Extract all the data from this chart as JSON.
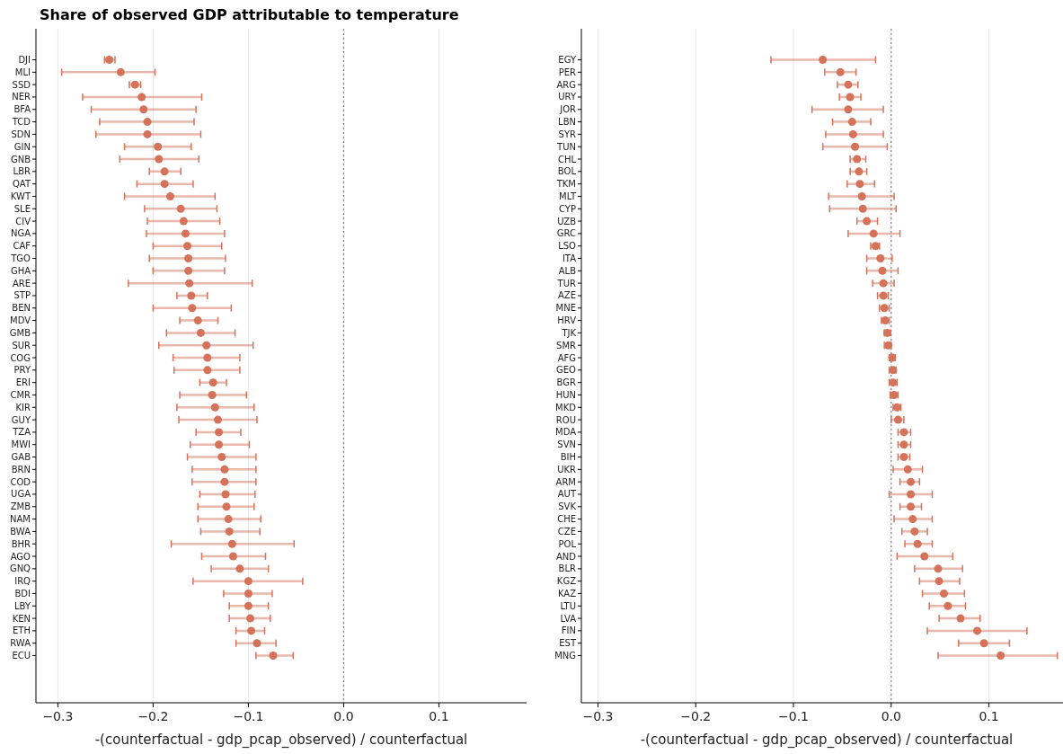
{
  "chart_data": [
    {
      "type": "scatter",
      "orientation": "horizontal",
      "title": "Share of observed GDP attributable to temperature",
      "xlabel": "-(counterfactual - gdp_pcap_observed) / counterfactual",
      "color": "#d4725a",
      "marker": "circle",
      "grid": "x",
      "xlim": [
        -0.323,
        0.192
      ],
      "xticks": [
        {
          "value": -0.3,
          "label": "−0.3"
        },
        {
          "value": -0.2,
          "label": "−0.2"
        },
        {
          "value": -0.1,
          "label": "−0.1"
        },
        {
          "value": 0,
          "label": "0.0"
        },
        {
          "value": 0.1,
          "label": "0.1"
        }
      ],
      "ref_lines": [
        {
          "axis": "x",
          "value": 0,
          "color": "#808080",
          "line_style": "dotted"
        }
      ],
      "categories": [
        "DJI",
        "MLI",
        "SSD",
        "NER",
        "BFA",
        "TCD",
        "SDN",
        "GIN",
        "GNB",
        "LBR",
        "QAT",
        "KWT",
        "SLE",
        "CIV",
        "NGA",
        "CAF",
        "TGO",
        "GHA",
        "ARE",
        "STP",
        "BEN",
        "MDV",
        "GMB",
        "SUR",
        "COG",
        "PRY",
        "ERI",
        "CMR",
        "KIR",
        "GUY",
        "TZA",
        "MWI",
        "GAB",
        "BRN",
        "COD",
        "UGA",
        "ZMB",
        "NAM",
        "BWA",
        "BHR",
        "AGO",
        "GNQ",
        "IRQ",
        "BDI",
        "LBY",
        "KEN",
        "ETH",
        "RWA",
        "ECU"
      ],
      "values": [
        -0.246,
        -0.234,
        -0.219,
        -0.212,
        -0.21,
        -0.206,
        -0.206,
        -0.195,
        -0.194,
        -0.188,
        -0.188,
        -0.182,
        -0.171,
        -0.168,
        -0.166,
        -0.164,
        -0.163,
        -0.163,
        -0.162,
        -0.16,
        -0.159,
        -0.153,
        -0.15,
        -0.144,
        -0.143,
        -0.143,
        -0.137,
        -0.138,
        -0.135,
        -0.132,
        -0.131,
        -0.131,
        -0.128,
        -0.125,
        -0.125,
        -0.124,
        -0.123,
        -0.121,
        -0.12,
        -0.117,
        -0.116,
        -0.109,
        -0.1,
        -0.1,
        -0.1,
        -0.098,
        -0.097,
        -0.091,
        -0.074
      ],
      "errors": [
        [
          -0.251,
          -0.24
        ],
        [
          -0.296,
          -0.198
        ],
        [
          -0.225,
          -0.213
        ],
        [
          -0.274,
          -0.149
        ],
        [
          -0.265,
          -0.155
        ],
        [
          -0.256,
          -0.157
        ],
        [
          -0.26,
          -0.15
        ],
        [
          -0.23,
          -0.16
        ],
        [
          -0.235,
          -0.152
        ],
        [
          -0.204,
          -0.171
        ],
        [
          -0.217,
          -0.158
        ],
        [
          -0.23,
          -0.135
        ],
        [
          -0.209,
          -0.133
        ],
        [
          -0.206,
          -0.13
        ],
        [
          -0.207,
          -0.125
        ],
        [
          -0.2,
          -0.128
        ],
        [
          -0.204,
          -0.124
        ],
        [
          -0.2,
          -0.125
        ],
        [
          -0.226,
          -0.096
        ],
        [
          -0.175,
          -0.143
        ],
        [
          -0.2,
          -0.118
        ],
        [
          -0.172,
          -0.132
        ],
        [
          -0.186,
          -0.114
        ],
        [
          -0.194,
          -0.095
        ],
        [
          -0.179,
          -0.109
        ],
        [
          -0.178,
          -0.109
        ],
        [
          -0.151,
          -0.123
        ],
        [
          -0.172,
          -0.102
        ],
        [
          -0.175,
          -0.094
        ],
        [
          -0.173,
          -0.091
        ],
        [
          -0.155,
          -0.108
        ],
        [
          -0.161,
          -0.099
        ],
        [
          -0.164,
          -0.092
        ],
        [
          -0.159,
          -0.092
        ],
        [
          -0.159,
          -0.092
        ],
        [
          -0.151,
          -0.093
        ],
        [
          -0.153,
          -0.094
        ],
        [
          -0.153,
          -0.087
        ],
        [
          -0.15,
          -0.088
        ],
        [
          -0.181,
          -0.052
        ],
        [
          -0.149,
          -0.082
        ],
        [
          -0.139,
          -0.079
        ],
        [
          -0.158,
          -0.043
        ],
        [
          -0.126,
          -0.075
        ],
        [
          -0.12,
          -0.079
        ],
        [
          -0.12,
          -0.077
        ],
        [
          -0.113,
          -0.083
        ],
        [
          -0.113,
          -0.071
        ],
        [
          -0.092,
          -0.053
        ]
      ]
    },
    {
      "type": "scatter",
      "orientation": "horizontal",
      "xlabel": "-(counterfactual - gdp_pcap_observed) / counterfactual",
      "color": "#d4725a",
      "marker": "circle",
      "grid": "x",
      "xlim": [
        -0.317,
        0.185
      ],
      "xticks": [
        {
          "value": -0.3,
          "label": "−0.3"
        },
        {
          "value": -0.2,
          "label": "−0.2"
        },
        {
          "value": -0.1,
          "label": "−0.1"
        },
        {
          "value": 0,
          "label": "0.0"
        },
        {
          "value": 0.1,
          "label": "0.1"
        }
      ],
      "ref_lines": [
        {
          "axis": "x",
          "value": 0,
          "color": "#808080",
          "line_style": "dotted"
        }
      ],
      "categories": [
        "EGY",
        "PER",
        "ARG",
        "URY",
        "JOR",
        "LBN",
        "SYR",
        "TUN",
        "CHL",
        "BOL",
        "TKM",
        "MLT",
        "CYP",
        "UZB",
        "GRC",
        "LSO",
        "ITA",
        "ALB",
        "TUR",
        "AZE",
        "MNE",
        "HRV",
        "TJK",
        "SMR",
        "AFG",
        "GEO",
        "BGR",
        "HUN",
        "MKD",
        "ROU",
        "MDA",
        "SVN",
        "BIH",
        "UKR",
        "ARM",
        "AUT",
        "SVK",
        "CHE",
        "CZE",
        "POL",
        "AND",
        "BLR",
        "KGZ",
        "KAZ",
        "LTU",
        "LVA",
        "FIN",
        "EST",
        "MNG"
      ],
      "values": [
        -0.07,
        -0.052,
        -0.044,
        -0.042,
        -0.044,
        -0.04,
        -0.039,
        -0.037,
        -0.035,
        -0.033,
        -0.032,
        -0.03,
        -0.029,
        -0.025,
        -0.018,
        -0.016,
        -0.011,
        -0.009,
        -0.008,
        -0.008,
        -0.007,
        -0.006,
        -0.004,
        -0.003,
        0.001,
        0.002,
        0.002,
        0.003,
        0.006,
        0.007,
        0.013,
        0.013,
        0.013,
        0.017,
        0.02,
        0.02,
        0.02,
        0.022,
        0.024,
        0.027,
        0.034,
        0.048,
        0.049,
        0.054,
        0.058,
        0.071,
        0.088,
        0.095,
        0.112
      ],
      "errors": [
        [
          -0.123,
          -0.016
        ],
        [
          -0.068,
          -0.036
        ],
        [
          -0.055,
          -0.034
        ],
        [
          -0.053,
          -0.031
        ],
        [
          -0.081,
          -0.008
        ],
        [
          -0.06,
          -0.021
        ],
        [
          -0.067,
          -0.008
        ],
        [
          -0.07,
          -0.004
        ],
        [
          -0.042,
          -0.026
        ],
        [
          -0.042,
          -0.025
        ],
        [
          -0.045,
          -0.017
        ],
        [
          -0.064,
          0.003
        ],
        [
          -0.063,
          0.005
        ],
        [
          -0.035,
          -0.014
        ],
        [
          -0.044,
          0.009
        ],
        [
          -0.021,
          -0.012
        ],
        [
          -0.025,
          0.001
        ],
        [
          -0.025,
          0.007
        ],
        [
          -0.019,
          0.003
        ],
        [
          -0.014,
          -0.003
        ],
        [
          -0.012,
          -0.002
        ],
        [
          -0.01,
          -0.002
        ],
        [
          -0.007,
          -0.001
        ],
        [
          -0.007,
          0
        ],
        [
          -0.002,
          0.004
        ],
        [
          -0.002,
          0.005
        ],
        [
          -0.002,
          0.006
        ],
        [
          -0.001,
          0.007
        ],
        [
          0.002,
          0.01
        ],
        [
          0,
          0.013
        ],
        [
          0.007,
          0.02
        ],
        [
          0.007,
          0.02
        ],
        [
          0.007,
          0.019
        ],
        [
          0.002,
          0.032
        ],
        [
          0.009,
          0.029
        ],
        [
          -0.002,
          0.042
        ],
        [
          0.009,
          0.031
        ],
        [
          0.003,
          0.042
        ],
        [
          0.011,
          0.037
        ],
        [
          0.014,
          0.042
        ],
        [
          0.006,
          0.063
        ],
        [
          0.024,
          0.073
        ],
        [
          0.029,
          0.07
        ],
        [
          0.032,
          0.075
        ],
        [
          0.039,
          0.076
        ],
        [
          0.049,
          0.091
        ],
        [
          0.037,
          0.139
        ],
        [
          0.069,
          0.121
        ],
        [
          0.048,
          0.17
        ]
      ]
    }
  ]
}
